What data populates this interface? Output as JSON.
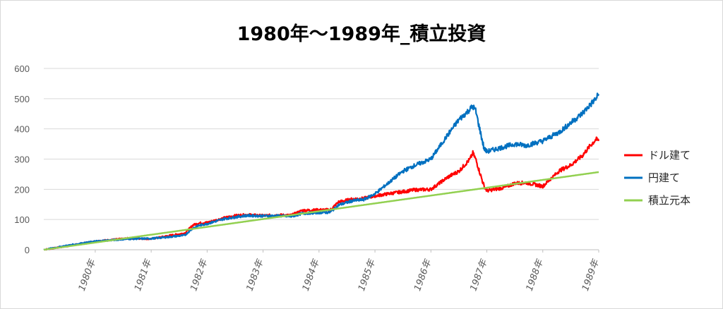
{
  "chart_data": {
    "type": "line",
    "title": "1980年～1989年_積立投資",
    "xlabel": "",
    "ylabel": "",
    "ylim": [
      0,
      600
    ],
    "yticks": [
      0,
      100,
      200,
      300,
      400,
      500,
      600
    ],
    "xlim": [
      1979.08,
      1989.0
    ],
    "xticks": [
      {
        "value": 1980,
        "label": "1980年"
      },
      {
        "value": 1981,
        "label": "1981年"
      },
      {
        "value": 1982,
        "label": "1982年"
      },
      {
        "value": 1983,
        "label": "1983年"
      },
      {
        "value": 1984,
        "label": "1984年"
      },
      {
        "value": 1985,
        "label": "1985年"
      },
      {
        "value": 1986,
        "label": "1986年"
      },
      {
        "value": 1987,
        "label": "1987年"
      },
      {
        "value": 1988,
        "label": "1988年"
      },
      {
        "value": 1989,
        "label": "1989年"
      }
    ],
    "grid": true,
    "legend_position": "right",
    "series": [
      {
        "name": "ドル建て",
        "color": "#ff0000",
        "x": [
          1979.08,
          1979.5,
          1980.0,
          1980.3,
          1980.6,
          1981.0,
          1981.3,
          1981.6,
          1981.75,
          1981.85,
          1982.0,
          1982.3,
          1982.5,
          1982.7,
          1983.0,
          1983.3,
          1983.5,
          1983.7,
          1984.0,
          1984.2,
          1984.35,
          1984.6,
          1984.8,
          1985.0,
          1985.3,
          1985.5,
          1985.7,
          1986.0,
          1986.3,
          1986.5,
          1986.7,
          1986.75,
          1986.8,
          1986.95,
          1987.0,
          1987.3,
          1987.5,
          1987.7,
          1988.0,
          1988.3,
          1988.5,
          1988.7,
          1988.85,
          1988.95,
          1989.0
        ],
        "y": [
          0,
          12,
          28,
          33,
          38,
          36,
          46,
          55,
          82,
          88,
          90,
          105,
          113,
          116,
          113,
          115,
          114,
          130,
          132,
          132,
          158,
          168,
          170,
          178,
          187,
          192,
          198,
          200,
          240,
          260,
          300,
          320,
          300,
          210,
          195,
          205,
          220,
          222,
          210,
          262,
          280,
          310,
          345,
          365,
          360
        ]
      },
      {
        "name": "円建て",
        "color": "#0070c0",
        "x": [
          1979.08,
          1979.5,
          1980.0,
          1980.3,
          1980.6,
          1981.0,
          1981.3,
          1981.6,
          1981.75,
          1981.85,
          1982.0,
          1982.3,
          1982.5,
          1982.7,
          1983.0,
          1983.3,
          1983.5,
          1983.7,
          1984.0,
          1984.2,
          1984.35,
          1984.6,
          1984.8,
          1985.0,
          1985.3,
          1985.5,
          1985.7,
          1986.0,
          1986.3,
          1986.5,
          1986.7,
          1986.75,
          1986.8,
          1986.95,
          1987.0,
          1987.3,
          1987.5,
          1987.7,
          1988.0,
          1988.3,
          1988.5,
          1988.7,
          1988.85,
          1988.95,
          1989.0
        ],
        "y": [
          0,
          14,
          28,
          32,
          36,
          37,
          42,
          48,
          72,
          80,
          86,
          102,
          108,
          113,
          112,
          112,
          110,
          120,
          123,
          124,
          148,
          162,
          166,
          185,
          230,
          260,
          278,
          300,
          380,
          430,
          465,
          475,
          460,
          335,
          325,
          340,
          350,
          345,
          360,
          390,
          420,
          450,
          480,
          500,
          515
        ]
      },
      {
        "name": "積立元本",
        "color": "#92d050",
        "x": [
          1979.08,
          1989.0
        ],
        "y": [
          0,
          257
        ]
      }
    ]
  }
}
